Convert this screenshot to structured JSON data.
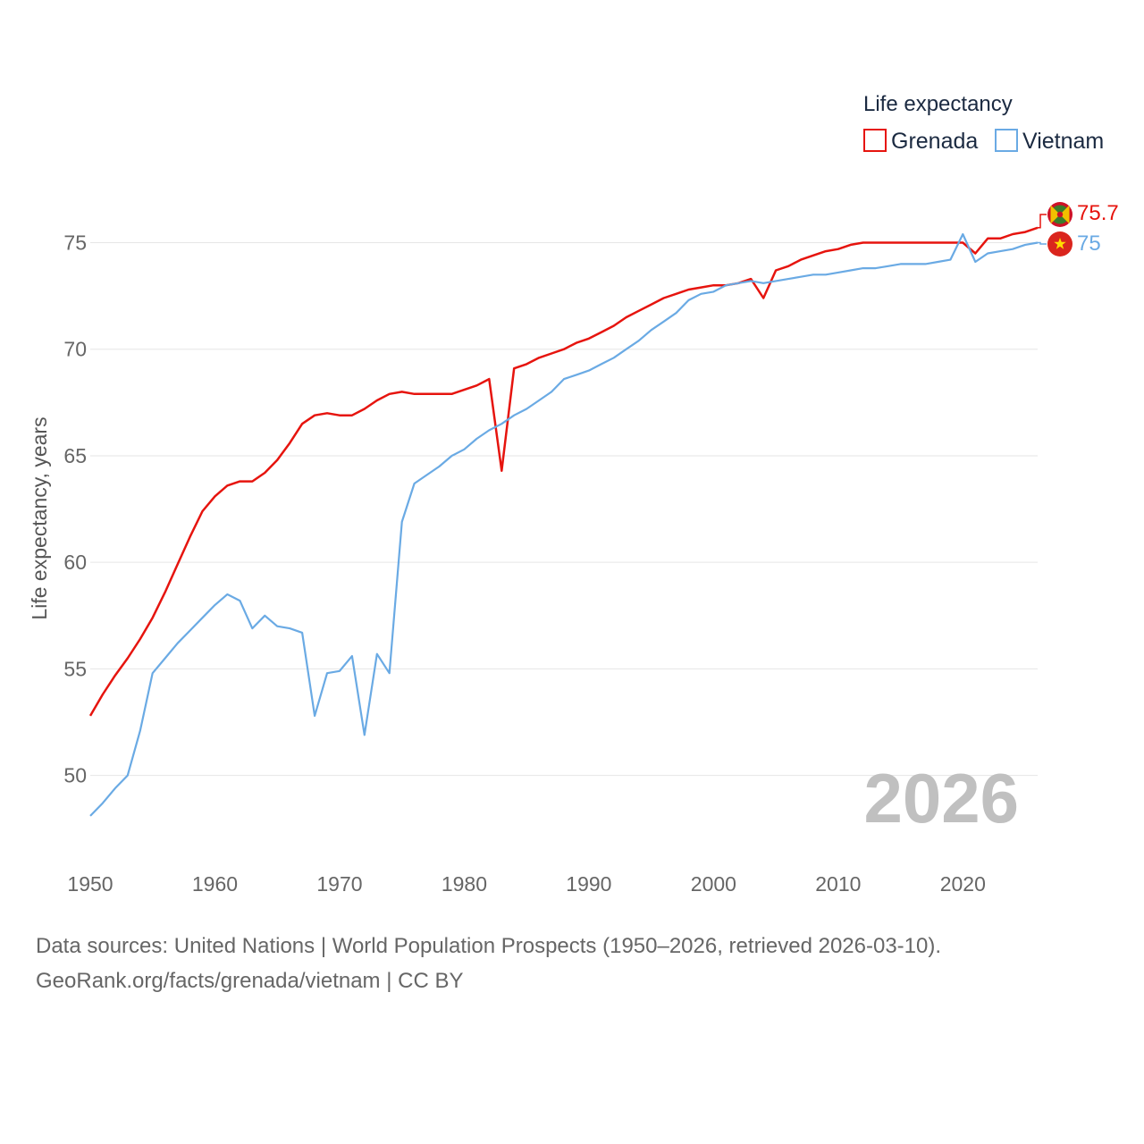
{
  "chart_data": {
    "type": "line",
    "title": "Life expectancy",
    "xlabel": "",
    "ylabel": "Life expectancy, years",
    "xlim": [
      1950,
      2026
    ],
    "ylim": [
      47.3,
      78
    ],
    "yticks": [
      50,
      55,
      60,
      65,
      70,
      75
    ],
    "xticks": [
      1950,
      1960,
      1970,
      1980,
      1990,
      2000,
      2010,
      2020
    ],
    "grid": true,
    "legend_position": "top-right",
    "current_year_label": "2026",
    "x": [
      1950,
      1951,
      1952,
      1953,
      1954,
      1955,
      1956,
      1957,
      1958,
      1959,
      1960,
      1961,
      1962,
      1963,
      1964,
      1965,
      1966,
      1967,
      1968,
      1969,
      1970,
      1971,
      1972,
      1973,
      1974,
      1975,
      1976,
      1977,
      1978,
      1979,
      1980,
      1981,
      1982,
      1983,
      1984,
      1985,
      1986,
      1987,
      1988,
      1989,
      1990,
      1991,
      1992,
      1993,
      1994,
      1995,
      1996,
      1997,
      1998,
      1999,
      2000,
      2001,
      2002,
      2003,
      2004,
      2005,
      2006,
      2007,
      2008,
      2009,
      2010,
      2011,
      2012,
      2013,
      2014,
      2015,
      2016,
      2017,
      2018,
      2019,
      2020,
      2021,
      2022,
      2023,
      2024,
      2025,
      2026
    ],
    "series": [
      {
        "name": "Grenada",
        "color": "#e6140e",
        "end_label": "75.7",
        "flag": "grenada-flag-icon",
        "values": [
          52.8,
          53.8,
          54.7,
          55.5,
          56.4,
          57.4,
          58.6,
          59.9,
          61.2,
          62.4,
          63.1,
          63.6,
          63.8,
          63.8,
          64.2,
          64.8,
          65.6,
          66.5,
          66.9,
          67.0,
          66.9,
          66.9,
          67.2,
          67.6,
          67.9,
          68.0,
          67.9,
          67.9,
          67.9,
          67.9,
          68.1,
          68.3,
          68.6,
          64.3,
          69.1,
          69.3,
          69.6,
          69.8,
          70.0,
          70.3,
          70.5,
          70.8,
          71.1,
          71.5,
          71.8,
          72.1,
          72.4,
          72.6,
          72.8,
          72.9,
          73.0,
          73.0,
          73.1,
          73.3,
          72.4,
          73.7,
          73.9,
          74.2,
          74.4,
          74.6,
          74.7,
          74.9,
          75.0,
          75.0,
          75.0,
          75.0,
          75.0,
          75.0,
          75.0,
          75.0,
          75.0,
          74.5,
          75.2,
          75.2,
          75.4,
          75.5,
          75.7
        ]
      },
      {
        "name": "Vietnam",
        "color": "#6aaae4",
        "end_label": "75",
        "flag": "vietnam-flag-icon",
        "values": [
          48.1,
          48.7,
          49.4,
          50.0,
          52.1,
          54.8,
          55.5,
          56.2,
          56.8,
          57.4,
          58.0,
          58.5,
          58.2,
          56.9,
          57.5,
          57.0,
          56.9,
          56.7,
          52.8,
          54.8,
          54.9,
          55.6,
          51.9,
          55.7,
          54.8,
          61.9,
          63.7,
          64.1,
          64.5,
          65.0,
          65.3,
          65.8,
          66.2,
          66.5,
          66.9,
          67.2,
          67.6,
          68.0,
          68.6,
          68.8,
          69.0,
          69.3,
          69.6,
          70.0,
          70.4,
          70.9,
          71.3,
          71.7,
          72.3,
          72.6,
          72.7,
          73.0,
          73.1,
          73.2,
          73.1,
          73.2,
          73.3,
          73.4,
          73.5,
          73.5,
          73.6,
          73.7,
          73.8,
          73.8,
          73.9,
          74.0,
          74.0,
          74.0,
          74.1,
          74.2,
          75.4,
          74.1,
          74.5,
          74.6,
          74.7,
          74.9,
          75.0
        ]
      }
    ]
  },
  "footer": {
    "sources": "Data sources: United Nations | World Population Prospects (1950–2026, retrieved 2026-03-10).",
    "credit": "GeoRank.org/facts/grenada/vietnam | CC BY"
  }
}
